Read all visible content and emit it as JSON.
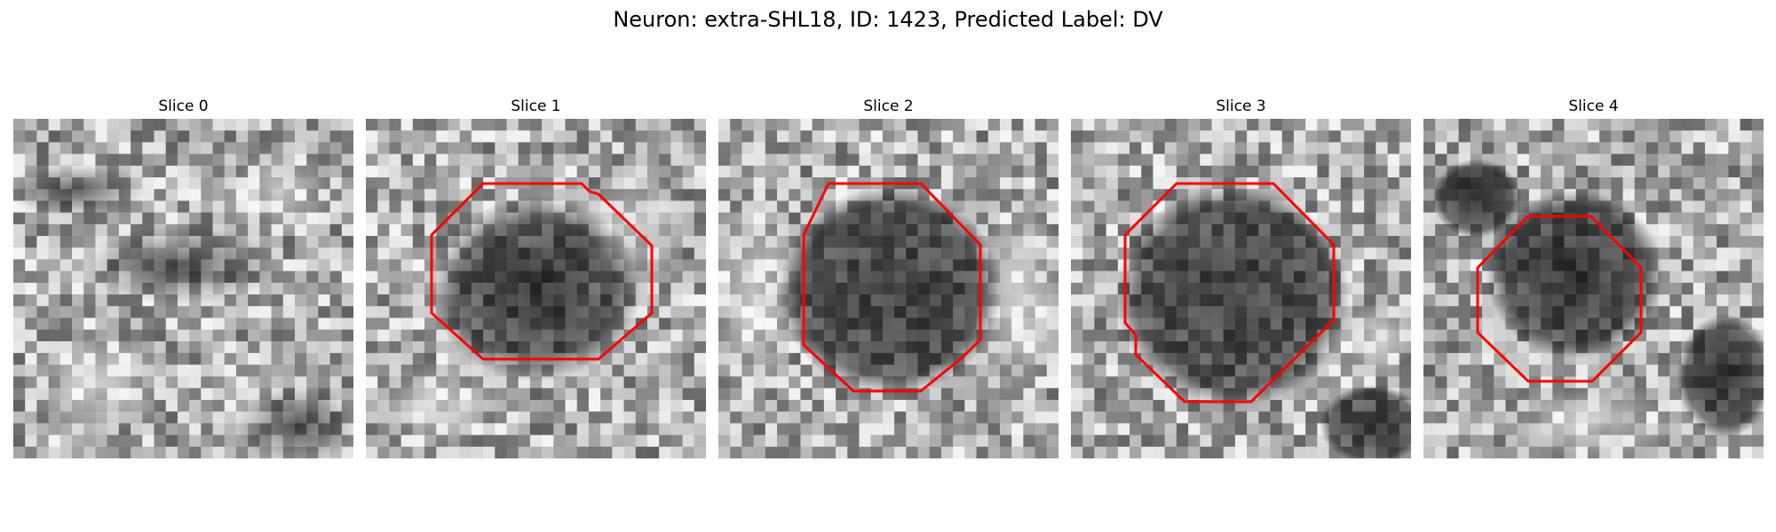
{
  "figure": {
    "title": "Neuron: extra-SHL18, ID: 1423, Predicted Label: DV",
    "contour_color": "#ff0000"
  },
  "panels": [
    {
      "title": "Slice 0"
    },
    {
      "title": "Slice 1"
    },
    {
      "title": "Slice 2"
    },
    {
      "title": "Slice 3"
    },
    {
      "title": "Slice 4"
    }
  ]
}
